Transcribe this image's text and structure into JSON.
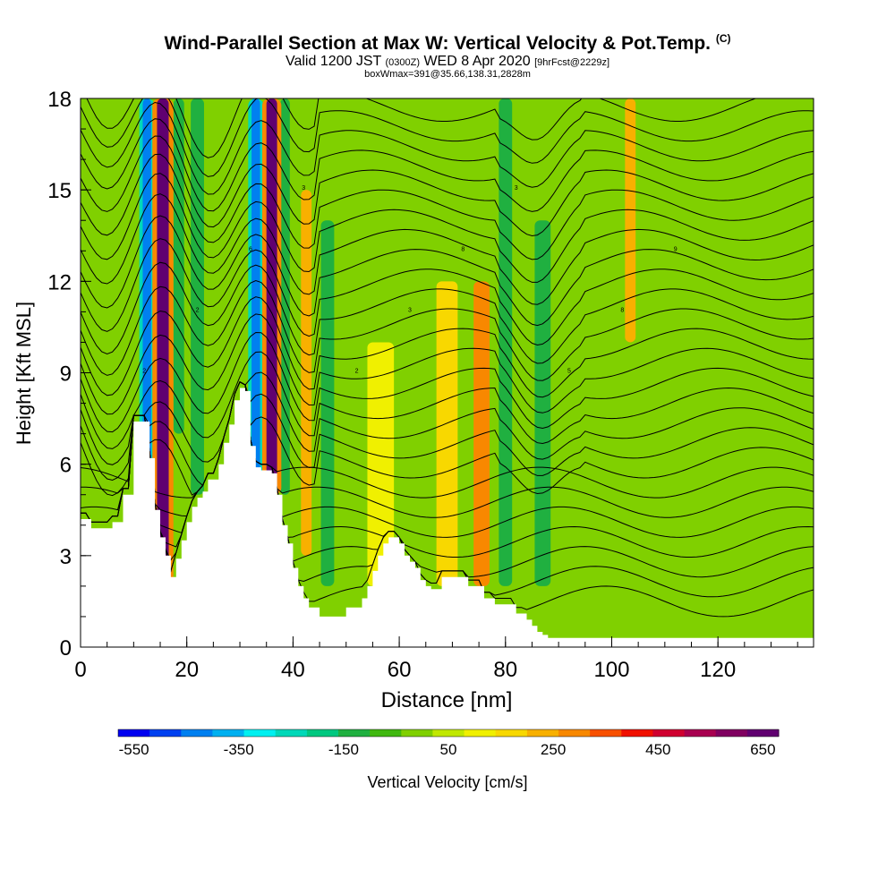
{
  "header": {
    "title": "Wind-Parallel Section at Max W: Vertical Velocity & Pot.Temp.",
    "title_mark": "(C)",
    "subtitle_valid": "Valid 1200 JST",
    "subtitle_utc": "(0300Z)",
    "subtitle_date": "WED 8 Apr 2020",
    "subtitle_fcst": "[9hrFcst@2229z]",
    "subtitle_box": "boxWmax=391@35.66,138.31,2828m"
  },
  "colorbar": {
    "label": "Vertical Velocity [cm/s]",
    "tick_labels": [
      "-550",
      "-350",
      "-150",
      "50",
      "250",
      "450",
      "650"
    ],
    "tick_values": [
      -550,
      -350,
      -150,
      50,
      250,
      450,
      650
    ],
    "colors": [
      "#0000f0",
      "#0040f0",
      "#0080f0",
      "#00b0f0",
      "#00f0f0",
      "#00d8b8",
      "#00c880",
      "#20b040",
      "#40b810",
      "#80d000",
      "#c0e800",
      "#f0f000",
      "#f8d800",
      "#f8b000",
      "#f88800",
      "#f85000",
      "#f01000",
      "#d00030",
      "#a80050",
      "#800060",
      "#600070"
    ],
    "min": -550,
    "max": 650
  },
  "chart_data": {
    "type": "heatmap",
    "xlabel": "Distance [nm]",
    "ylabel": "Height [Kft MSL]",
    "xlim": [
      0,
      138
    ],
    "ylim": [
      0,
      18
    ],
    "x_ticks": [
      0,
      20,
      40,
      60,
      80,
      100,
      120
    ],
    "y_ticks": [
      0,
      3,
      6,
      9,
      12,
      15,
      18
    ],
    "terrain": {
      "x": [
        0,
        2,
        2,
        6,
        6,
        8,
        8,
        10,
        10,
        13,
        13,
        14,
        14,
        15,
        15,
        16,
        16,
        17,
        17,
        18,
        18,
        19,
        19,
        20,
        20,
        21,
        21,
        22,
        22,
        23,
        23,
        24,
        24,
        26,
        26,
        27,
        27,
        28,
        28,
        29,
        29,
        30,
        30,
        31,
        31,
        32,
        32,
        33,
        33,
        34,
        34,
        35,
        35,
        36,
        36,
        37,
        37,
        38,
        38,
        39,
        39,
        40,
        40,
        41,
        41,
        42,
        42,
        43,
        43,
        45,
        45,
        50,
        50,
        53,
        53,
        54,
        54,
        55,
        55,
        56,
        56,
        57,
        57,
        58,
        58,
        60,
        60,
        61,
        61,
        62,
        62,
        63,
        63,
        64,
        64,
        65,
        65,
        66,
        66,
        68,
        68,
        73,
        73,
        76,
        76,
        78,
        78,
        82,
        82,
        84,
        84,
        85,
        85,
        86,
        86,
        87,
        87,
        88,
        88,
        90,
        90,
        94,
        94,
        138
      ],
      "y": [
        4.2,
        4.2,
        3.9,
        3.9,
        4.1,
        4.1,
        5.0,
        5.0,
        7.4,
        7.4,
        6.2,
        6.2,
        4.5,
        4.5,
        3.6,
        3.6,
        3.0,
        3.0,
        2.3,
        2.3,
        2.9,
        2.9,
        3.5,
        3.5,
        4.1,
        4.1,
        4.6,
        4.6,
        4.9,
        4.9,
        5.1,
        5.1,
        5.5,
        5.5,
        6.0,
        6.0,
        6.7,
        6.7,
        7.3,
        7.3,
        8.1,
        8.1,
        8.5,
        8.5,
        8.4,
        8.4,
        6.6,
        6.6,
        5.9,
        5.9,
        5.8,
        5.8,
        5.8,
        5.8,
        5.7,
        5.7,
        5.0,
        5.0,
        4.0,
        4.0,
        3.4,
        3.4,
        2.6,
        2.6,
        2.0,
        2.0,
        1.6,
        1.6,
        1.3,
        1.3,
        1.0,
        1.0,
        1.3,
        1.3,
        1.6,
        1.6,
        2.0,
        2.0,
        2.5,
        2.5,
        3.0,
        3.0,
        3.4,
        3.4,
        3.6,
        3.6,
        3.4,
        3.4,
        3.0,
        3.0,
        2.8,
        2.8,
        2.6,
        2.6,
        2.2,
        2.2,
        2.0,
        2.0,
        1.9,
        1.9,
        2.3,
        2.3,
        2.0,
        2.0,
        1.6,
        1.6,
        1.4,
        1.4,
        1.1,
        1.1,
        0.9,
        0.9,
        0.7,
        0.7,
        0.5,
        0.5,
        0.4,
        0.4,
        0.3,
        0.3,
        0.3,
        0.3,
        0.3,
        0.3
      ]
    },
    "w_features": [
      {
        "x": 15.5,
        "y": [
          0,
          18
        ],
        "w": 600,
        "width": 2.2
      },
      {
        "x": 12.5,
        "y": [
          5,
          18
        ],
        "w": -420,
        "width": 1.6
      },
      {
        "x": 18.5,
        "y": [
          7,
          18
        ],
        "w": -150,
        "width": 2.0
      },
      {
        "x": 22.0,
        "y": [
          5,
          18
        ],
        "w": -100,
        "width": 2.5
      },
      {
        "x": 36.0,
        "y": [
          5,
          18
        ],
        "w": 650,
        "width": 2.0
      },
      {
        "x": 33.0,
        "y": [
          5,
          18
        ],
        "w": -380,
        "width": 1.6
      },
      {
        "x": 38.5,
        "y": [
          5,
          18
        ],
        "w": -150,
        "width": 1.8
      },
      {
        "x": 42.5,
        "y": [
          3,
          15
        ],
        "w": 200,
        "width": 2.0
      },
      {
        "x": 46.5,
        "y": [
          2,
          14
        ],
        "w": -150,
        "width": 2.5
      },
      {
        "x": 69.0,
        "y": [
          2,
          12
        ],
        "w": 180,
        "width": 4.0
      },
      {
        "x": 75.5,
        "y": [
          2,
          12
        ],
        "w": 300,
        "width": 3.0
      },
      {
        "x": 56.5,
        "y": [
          2,
          10
        ],
        "w": 80,
        "width": 5.0
      },
      {
        "x": 80.0,
        "y": [
          2,
          18
        ],
        "w": -150,
        "width": 2.5
      },
      {
        "x": 87.0,
        "y": [
          2,
          14
        ],
        "w": -100,
        "width": 3.0
      },
      {
        "x": 103.5,
        "y": [
          10,
          18
        ],
        "w": 200,
        "width": 2.0
      },
      {
        "x": 134.0,
        "y": [
          0,
          18
        ],
        "w": 0,
        "width": 4.0
      }
    ],
    "theta_contour_levels": 26,
    "theta_labels": [
      "2",
      "2",
      "6",
      "3",
      "2",
      "3",
      "8",
      "3",
      "5",
      "8",
      "9"
    ]
  }
}
